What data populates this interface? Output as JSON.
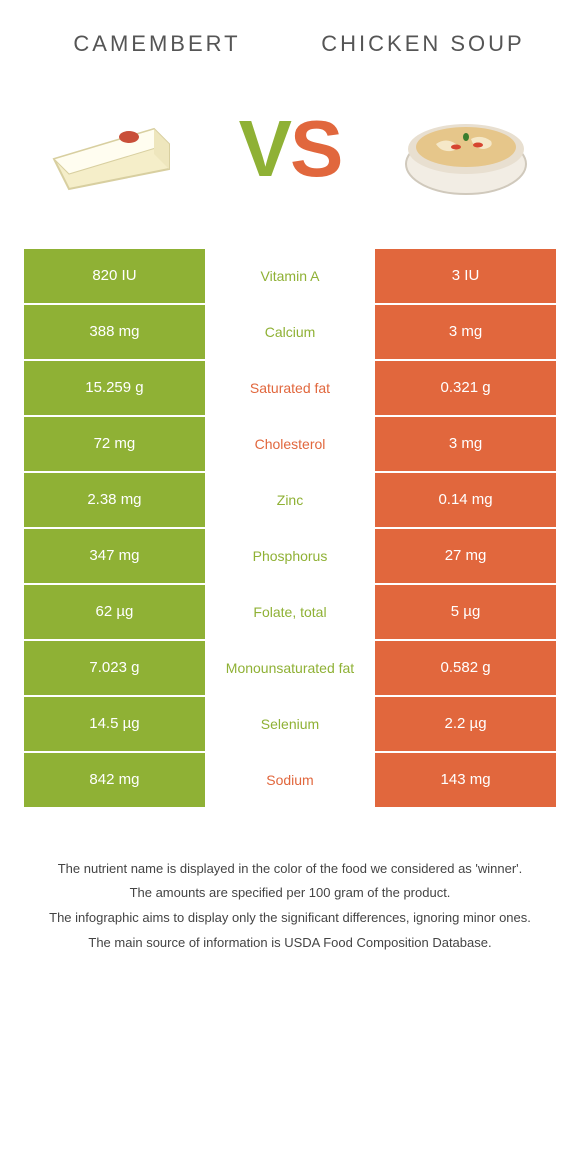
{
  "colors": {
    "green": "#8fb135",
    "orange": "#e1673d",
    "white": "#ffffff",
    "text": "#555"
  },
  "food_left": {
    "name": "Camembert"
  },
  "food_right": {
    "name": "Chicken Soup"
  },
  "vs": {
    "letter_v": "V",
    "letter_s": "S"
  },
  "rows": [
    {
      "nutrient": "Vitamin A",
      "left": "820 IU",
      "right": "3 IU",
      "winner": "left"
    },
    {
      "nutrient": "Calcium",
      "left": "388 mg",
      "right": "3 mg",
      "winner": "left"
    },
    {
      "nutrient": "Saturated fat",
      "left": "15.259 g",
      "right": "0.321 g",
      "winner": "right"
    },
    {
      "nutrient": "Cholesterol",
      "left": "72 mg",
      "right": "3 mg",
      "winner": "right"
    },
    {
      "nutrient": "Zinc",
      "left": "2.38 mg",
      "right": "0.14 mg",
      "winner": "left"
    },
    {
      "nutrient": "Phosphorus",
      "left": "347 mg",
      "right": "27 mg",
      "winner": "left"
    },
    {
      "nutrient": "Folate, total",
      "left": "62 µg",
      "right": "5 µg",
      "winner": "left"
    },
    {
      "nutrient": "Monounsaturated fat",
      "left": "7.023 g",
      "right": "0.582 g",
      "winner": "left"
    },
    {
      "nutrient": "Selenium",
      "left": "14.5 µg",
      "right": "2.2 µg",
      "winner": "left"
    },
    {
      "nutrient": "Sodium",
      "left": "842 mg",
      "right": "143 mg",
      "winner": "right"
    }
  ],
  "footer": {
    "line1": "The nutrient name is displayed in the color of the food we considered as 'winner'.",
    "line2": "The amounts are specified per 100 gram of the product.",
    "line3": "The infographic aims to display only the significant differences, ignoring minor ones.",
    "line4": "The main source of information is USDA Food Composition Database."
  }
}
